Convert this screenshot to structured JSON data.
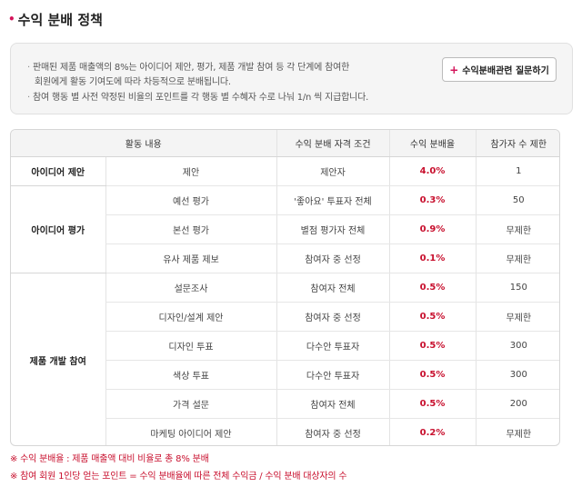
{
  "header": {
    "title": "수익 분배 정책",
    "bullet": "•"
  },
  "info": {
    "lines": [
      "판매된 제품 매출액의 8%는 아이디어 제안, 평가, 제품 개발  참여 등 각 단계에 참여한",
      "회원에게 활동 기여도에 따라 차등적으로 분배됩니다.",
      "참여 행동 별 사전 약정된 비율의 포인트를 각 행동 별 수혜자 수로 나눠 1/n 씩 지급합니다."
    ],
    "ask_button": {
      "plus": "+",
      "label": "수익분배관련 질문하기"
    }
  },
  "table": {
    "headers": [
      "활동 내용",
      "수익 분배 자격 조건",
      "수익 분배율",
      "참가자 수 제한"
    ],
    "groups": [
      {
        "category": "아이디어 제안",
        "rows": [
          {
            "activity": "제안",
            "condition": "제안자",
            "rate": "4.0%",
            "limit": "1"
          }
        ]
      },
      {
        "category": "아이디어 평가",
        "rows": [
          {
            "activity": "예선 평가",
            "condition": "'좋아요' 투표자 전체",
            "rate": "0.3%",
            "limit": "50"
          },
          {
            "activity": "본선 평가",
            "condition": "별점 평가자 전체",
            "rate": "0.9%",
            "limit": "무제한"
          },
          {
            "activity": "유사 제품  제보",
            "condition": "참여자 중 선정",
            "rate": "0.1%",
            "limit": "무제한"
          }
        ]
      },
      {
        "category": "제품 개발 참여",
        "rows": [
          {
            "activity": "설문조사",
            "condition": "참여자 전체",
            "rate": "0.5%",
            "limit": "150"
          },
          {
            "activity": "디자인/설계 제안",
            "condition": "참여자 중 선정",
            "rate": "0.5%",
            "limit": "무제한"
          },
          {
            "activity": "디자인 투표",
            "condition": "다수안 투표자",
            "rate": "0.5%",
            "limit": "300"
          },
          {
            "activity": "색상 투표",
            "condition": "다수안 투표자",
            "rate": "0.5%",
            "limit": "300"
          },
          {
            "activity": "가격 설문",
            "condition": "참여자 전체",
            "rate": "0.5%",
            "limit": "200"
          },
          {
            "activity": "마케팅 아이디어 제안",
            "condition": "참여자 중 선정",
            "rate": "0.2%",
            "limit": "무제한"
          }
        ]
      }
    ]
  },
  "notes": [
    "※ 수익 분배율 : 제품 매출액 대비 비율로 총 8% 분배",
    "※ 참여 회원 1인당 얻는 포인트 = 수익 분배율에 따른 전체 수익금 / 수익 분배 대상자의 수"
  ],
  "colors": {
    "accent": "#c8102e",
    "bullet": "#d4145a"
  }
}
